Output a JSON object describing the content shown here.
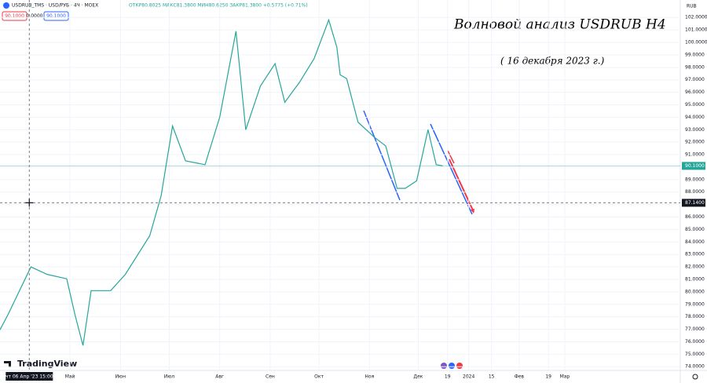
{
  "header": {
    "symbol": "USDRUB_TMS · USD/РУБ · 4Ч · MOEX",
    "ohlc": "ОТКР80.8025 МАКС81.3800 МИН80.6250 ЗАКР81.3800 +0.5775 (+0.71%)",
    "buttons": [
      "90.1000",
      "0.0000",
      "90.1000"
    ],
    "currency": "RUB",
    "logo": "TradingView"
  },
  "chart_data": {
    "type": "line",
    "annotations": [
      "Волновой анализ USDRUB H4",
      "( 16 декабря 2023 г.)"
    ],
    "x": [
      -18,
      -13,
      1,
      11,
      23,
      28,
      33,
      38,
      50,
      59,
      74,
      81,
      88,
      96,
      108,
      117,
      127,
      133,
      142,
      151,
      157,
      166,
      175,
      184,
      189,
      191,
      195,
      202,
      212,
      219,
      226,
      231,
      238,
      245,
      250,
      254
    ],
    "series": [
      {
        "color": "#26a69a",
        "values": [
          76.96,
          78.2,
          82.0,
          81.4,
          81.05,
          78.2,
          75.7,
          80.1,
          80.1,
          81.4,
          84.5,
          87.7,
          93.3,
          90.5,
          90.2,
          94.0,
          100.9,
          93.0,
          96.5,
          98.3,
          95.2,
          96.8,
          98.7,
          101.8,
          99.6,
          97.4,
          97.1,
          93.6,
          92.4,
          91.7,
          88.3,
          88.3,
          88.9,
          93.0,
          90.2,
          90.1
        ]
      }
    ],
    "xlim": [
      -18,
      400
    ],
    "ylim": [
      73.7,
      103.4
    ],
    "xticks": [
      {
        "value": 25,
        "label": "Май"
      },
      {
        "value": 56,
        "label": "Июн"
      },
      {
        "value": 86,
        "label": "Июл"
      },
      {
        "value": 117,
        "label": "Авг"
      },
      {
        "value": 148,
        "label": "Сен"
      },
      {
        "value": 178,
        "label": "Окт"
      },
      {
        "value": 209,
        "label": "Ноя"
      },
      {
        "value": 239,
        "label": "Дек"
      },
      {
        "value": 257,
        "label": "19"
      },
      {
        "value": 270,
        "label": "2024"
      },
      {
        "value": 284,
        "label": "15"
      },
      {
        "value": 301,
        "label": "Фев"
      },
      {
        "value": 319,
        "label": "19"
      },
      {
        "value": 329,
        "label": "Мар"
      }
    ],
    "yticks": [
      {
        "value": 74,
        "label": "74.0000"
      },
      {
        "value": 75,
        "label": "75.0000"
      },
      {
        "value": 76,
        "label": "76.0000"
      },
      {
        "value": 77,
        "label": "77.0000"
      },
      {
        "value": 78,
        "label": "78.0000"
      },
      {
        "value": 79,
        "label": "79.0000"
      },
      {
        "value": 80,
        "label": "80.0000"
      },
      {
        "value": 81,
        "label": "81.0000"
      },
      {
        "value": 82,
        "label": "82.0000"
      },
      {
        "value": 83,
        "label": "83.0000"
      },
      {
        "value": 84,
        "label": "84.0000"
      },
      {
        "value": 85,
        "label": "85.0000"
      },
      {
        "value": 86,
        "label": "86.0000"
      },
      {
        "value": 87,
        "label": "87.0000"
      },
      {
        "value": 88,
        "label": "88.0000"
      },
      {
        "value": 89,
        "label": "89.0000"
      },
      {
        "value": 90,
        "label": "90.0000"
      },
      {
        "value": 91,
        "label": "91.0000"
      },
      {
        "value": 92,
        "label": "92.0000"
      },
      {
        "value": 93,
        "label": "93.0000"
      },
      {
        "value": 94,
        "label": "94.0000"
      },
      {
        "value": 95,
        "label": "95.0000"
      },
      {
        "value": 96,
        "label": "96.0000"
      },
      {
        "value": 97,
        "label": "97.0000"
      },
      {
        "value": 98,
        "label": "98.0000"
      },
      {
        "value": 99,
        "label": "99.0000"
      },
      {
        "value": 100,
        "label": "100.0000"
      },
      {
        "value": 101,
        "label": "101.0000"
      },
      {
        "value": 102,
        "label": "102.0000"
      }
    ],
    "last_price": {
      "value": 90.1,
      "label": "90.1000"
    },
    "crosshair": {
      "value": 87.14,
      "label": "87.1400",
      "x": 0,
      "x_label": "чт 06 Апр '23 15:00"
    }
  }
}
